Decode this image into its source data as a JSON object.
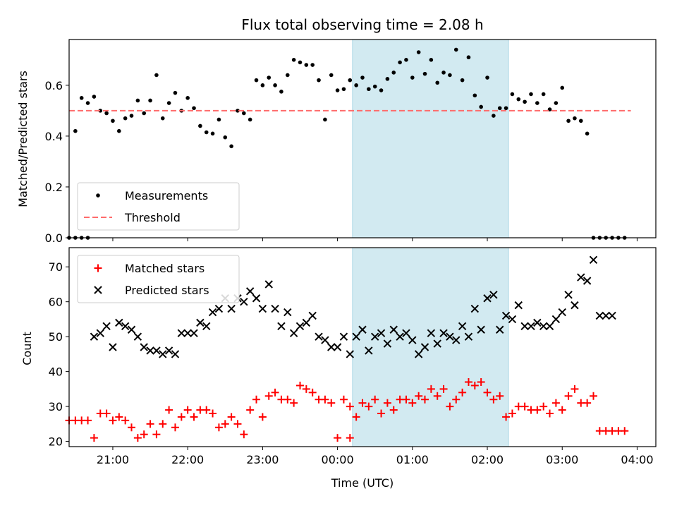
{
  "title": "Flux total observing time = 2.08 h",
  "colors": {
    "highlight": "#add8e6",
    "threshold": "#ff6b6b",
    "measurement": "#000000",
    "matched": "#ff0000",
    "predicted": "#000000"
  },
  "chart_data": [
    {
      "type": "scatter",
      "ylabel": "Matched/Predicted stars",
      "xlabel": "",
      "xlim": [
        "20:25",
        "04:15"
      ],
      "ylim": [
        0,
        0.78
      ],
      "yticks": [
        0.0,
        0.2,
        0.4,
        0.6
      ],
      "ytick_labels": [
        "0.0",
        "0.2",
        "0.4",
        "0.6"
      ],
      "grid": false,
      "legend_position": "lower-left",
      "highlight_span": [
        "00:12",
        "02:17"
      ],
      "series": [
        {
          "name": "Measurements",
          "kind": "points",
          "x": [
            "20:25",
            "20:30",
            "20:35",
            "20:40",
            "20:45",
            "20:50",
            "20:55",
            "21:00",
            "21:05",
            "21:10",
            "21:15",
            "21:20",
            "21:25",
            "21:30",
            "21:35",
            "21:40",
            "21:45",
            "21:50",
            "21:55",
            "22:00",
            "22:05",
            "22:10",
            "22:15",
            "22:20",
            "22:25",
            "22:30",
            "22:35",
            "22:40",
            "22:45",
            "22:50",
            "22:55",
            "23:00",
            "23:05",
            "23:10",
            "23:15",
            "23:20",
            "23:25",
            "23:30",
            "23:35",
            "23:40",
            "23:45",
            "23:50",
            "23:55",
            "00:00",
            "00:05",
            "00:10",
            "00:15",
            "00:20",
            "00:25",
            "00:30",
            "00:35",
            "00:40",
            "00:45",
            "00:50",
            "00:55",
            "01:00",
            "01:05",
            "01:10",
            "01:15",
            "01:20",
            "01:25",
            "01:30",
            "01:35",
            "01:40",
            "01:45",
            "01:50",
            "01:55",
            "02:00",
            "02:05",
            "02:10",
            "02:15",
            "02:20",
            "02:25",
            "02:30",
            "02:35",
            "02:40",
            "02:45",
            "02:50",
            "02:55",
            "03:00",
            "03:05",
            "03:10",
            "03:15",
            "03:20",
            "03:25",
            "03:30",
            "03:35",
            "03:40",
            "03:45",
            "03:50"
          ],
          "y": [
            0.0,
            0.42,
            0.55,
            0.53,
            0.555,
            0.5,
            0.49,
            0.46,
            0.42,
            0.47,
            0.48,
            0.54,
            0.49,
            0.54,
            0.64,
            0.47,
            0.53,
            0.57,
            0.5,
            0.55,
            0.51,
            0.44,
            0.415,
            0.41,
            0.465,
            0.395,
            0.36,
            0.5,
            0.49,
            0.465,
            0.62,
            0.6,
            0.63,
            0.6,
            0.575,
            0.64,
            0.7,
            0.69,
            0.68,
            0.68,
            0.62,
            0.465,
            0.64,
            0.58,
            0.585,
            0.62,
            0.6,
            0.63,
            0.585,
            0.595,
            0.58,
            0.625,
            0.65,
            0.69,
            0.7,
            0.63,
            0.73,
            0.645,
            0.7,
            0.61,
            0.65,
            0.64,
            0.74,
            0.62,
            0.71,
            0.56,
            0.515,
            0.63,
            0.48,
            0.51,
            0.51,
            0.565,
            0.545,
            0.535,
            0.565,
            0.53,
            0.565,
            0.505,
            0.53,
            0.59,
            0.46,
            0.47,
            0.46,
            0.41,
            0.0,
            0.0,
            0.0,
            0.0,
            0.0,
            0.0
          ],
          "extra_zero_x": [
            "20:30",
            "20:35",
            "20:40"
          ]
        },
        {
          "name": "Threshold",
          "kind": "dashed-line",
          "x": [
            "20:25",
            "03:55"
          ],
          "y": [
            0.5,
            0.5
          ]
        }
      ]
    },
    {
      "type": "scatter",
      "ylabel": "Count",
      "xlabel": "Time (UTC)",
      "xlim": [
        "20:25",
        "04:15"
      ],
      "ylim": [
        18.5,
        75.5
      ],
      "yticks": [
        20,
        30,
        40,
        50,
        60,
        70
      ],
      "ytick_labels": [
        "20",
        "30",
        "40",
        "50",
        "60",
        "70"
      ],
      "xticks": [
        "21:00",
        "22:00",
        "23:00",
        "00:00",
        "01:00",
        "02:00",
        "03:00",
        "04:00"
      ],
      "xtick_labels": [
        "21:00",
        "22:00",
        "23:00",
        "00:00",
        "01:00",
        "02:00",
        "03:00",
        "04:00"
      ],
      "grid": false,
      "legend_position": "upper-left",
      "highlight_span": [
        "00:12",
        "02:17"
      ],
      "series": [
        {
          "name": "Matched stars",
          "kind": "plus",
          "x": [
            "20:25",
            "20:30",
            "20:35",
            "20:40",
            "20:45",
            "20:50",
            "20:55",
            "21:00",
            "21:05",
            "21:10",
            "21:15",
            "21:20",
            "21:25",
            "21:30",
            "21:35",
            "21:40",
            "21:45",
            "21:50",
            "21:55",
            "22:00",
            "22:05",
            "22:10",
            "22:15",
            "22:20",
            "22:25",
            "22:30",
            "22:35",
            "22:40",
            "22:45",
            "22:50",
            "22:55",
            "23:00",
            "23:05",
            "23:10",
            "23:15",
            "23:20",
            "23:25",
            "23:30",
            "23:35",
            "23:40",
            "23:45",
            "23:50",
            "23:55",
            "00:00",
            "00:05",
            "00:10",
            "00:15",
            "00:20",
            "00:25",
            "00:30",
            "00:35",
            "00:40",
            "00:45",
            "00:50",
            "00:55",
            "01:00",
            "01:05",
            "01:10",
            "01:15",
            "01:20",
            "01:25",
            "01:30",
            "01:35",
            "01:40",
            "01:45",
            "01:50",
            "01:55",
            "02:00",
            "02:05",
            "02:10",
            "02:15",
            "02:20",
            "02:25",
            "02:30",
            "02:35",
            "02:40",
            "02:45",
            "02:50",
            "02:55",
            "03:00",
            "03:05",
            "03:10",
            "03:15",
            "03:20",
            "03:25",
            "03:30",
            "03:35",
            "03:40",
            "03:45",
            "03:50"
          ],
          "y": [
            26,
            26,
            26,
            26,
            21,
            28,
            28,
            26,
            27,
            26,
            24,
            21,
            22,
            25,
            22,
            25,
            29,
            24,
            27,
            29,
            27,
            29,
            29,
            28,
            24,
            25,
            27,
            25,
            22,
            29,
            32,
            27,
            33,
            34,
            32,
            32,
            31,
            36,
            35,
            34,
            32,
            32,
            31,
            21,
            32,
            30,
            27,
            31,
            30,
            32,
            28,
            31,
            29,
            32,
            32,
            31,
            33,
            32,
            35,
            33,
            35,
            30,
            32,
            34,
            37,
            36,
            37,
            34,
            32,
            33,
            27,
            28,
            30,
            30,
            29,
            29,
            30,
            28,
            31,
            29,
            33,
            35,
            31,
            31,
            33,
            23,
            23,
            23,
            23,
            23
          ],
          "extra_x": [
            "00:10"
          ],
          "extra_y": [
            21
          ]
        },
        {
          "name": "Predicted stars",
          "kind": "x",
          "x": [
            "20:45",
            "20:50",
            "20:55",
            "21:00",
            "21:05",
            "21:10",
            "21:15",
            "21:20",
            "21:25",
            "21:30",
            "21:35",
            "21:40",
            "21:45",
            "21:50",
            "21:55",
            "22:00",
            "22:05",
            "22:10",
            "22:15",
            "22:20",
            "22:25",
            "22:30",
            "22:35",
            "22:40",
            "22:45",
            "22:50",
            "22:55",
            "23:00",
            "23:05",
            "23:10",
            "23:15",
            "23:20",
            "23:25",
            "23:30",
            "23:35",
            "23:40",
            "23:45",
            "23:50",
            "23:55",
            "00:00",
            "00:05",
            "00:10",
            "00:15",
            "00:20",
            "00:25",
            "00:30",
            "00:35",
            "00:40",
            "00:45",
            "00:50",
            "00:55",
            "01:00",
            "01:05",
            "01:10",
            "01:15",
            "01:20",
            "01:25",
            "01:30",
            "01:35",
            "01:40",
            "01:45",
            "01:50",
            "01:55",
            "02:00",
            "02:05",
            "02:10",
            "02:15",
            "02:20",
            "02:25",
            "02:30",
            "02:35",
            "02:40",
            "02:45",
            "02:50",
            "02:55",
            "03:00",
            "03:05",
            "03:10",
            "03:15",
            "03:20",
            "03:25",
            "03:30",
            "03:35",
            "03:40"
          ],
          "y": [
            50,
            51,
            53,
            47,
            54,
            53,
            52,
            50,
            47,
            46,
            46,
            45,
            46,
            45,
            51,
            51,
            51,
            54,
            53,
            57,
            58,
            61,
            58,
            61,
            60,
            63,
            61,
            58,
            65,
            58,
            53,
            57,
            51,
            53,
            54,
            56,
            50,
            49,
            47,
            47,
            50,
            45,
            50,
            52,
            46,
            50,
            51,
            48,
            52,
            50,
            51,
            49,
            45,
            47,
            51,
            48,
            51,
            50,
            49,
            53,
            50,
            58,
            52,
            61,
            62,
            52,
            56,
            55,
            59,
            53,
            53,
            54,
            53,
            53,
            55,
            57,
            62,
            59,
            67,
            66,
            72,
            56,
            56,
            56
          ]
        }
      ]
    }
  ]
}
